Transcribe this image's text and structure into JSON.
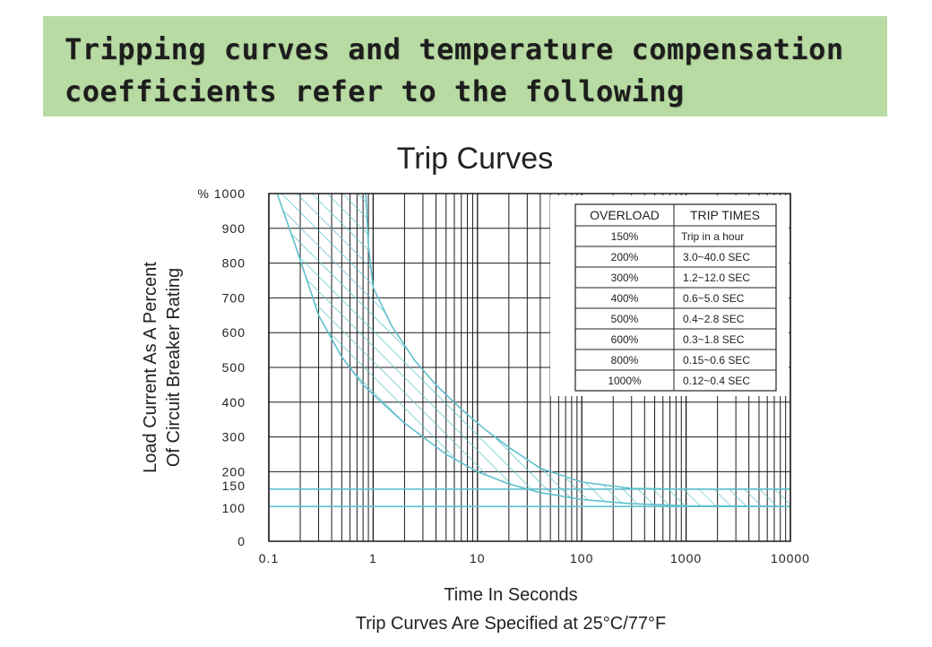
{
  "banner": {
    "line1": "Tripping curves and temperature compensation",
    "line2": "coefficients refer to the following"
  },
  "colors": {
    "banner_bg": "#b8dba3",
    "curve": "#5fc0cc",
    "grid": "#1a1a1a"
  },
  "chart_data": {
    "type": "area",
    "title": "Trip Curves",
    "xlabel": "Time In Seconds",
    "ylabel_line1": "Load Current As A Percent",
    "ylabel_line2": "Of Circuit Breaker Rating",
    "footnote": "Trip Curves Are Specified at 25°C/77°F",
    "x_scale": "log",
    "xlim": [
      0.1,
      10000
    ],
    "ylim": [
      0,
      1000
    ],
    "x_ticks": [
      {
        "value": 0.1,
        "label": "0.1"
      },
      {
        "value": 1,
        "label": "1"
      },
      {
        "value": 10,
        "label": "10"
      },
      {
        "value": 100,
        "label": "100"
      },
      {
        "value": 1000,
        "label": "1000"
      },
      {
        "value": 10000,
        "label": "10000"
      }
    ],
    "y_ticks": [
      {
        "value": 0,
        "label": "0"
      },
      {
        "value": 100,
        "label": "100"
      },
      {
        "value": 150,
        "label": "150"
      },
      {
        "value": 200,
        "label": "200"
      },
      {
        "value": 300,
        "label": "300"
      },
      {
        "value": 400,
        "label": "400"
      },
      {
        "value": 500,
        "label": "500"
      },
      {
        "value": 600,
        "label": "600"
      },
      {
        "value": 700,
        "label": "700"
      },
      {
        "value": 800,
        "label": "800"
      },
      {
        "value": 900,
        "label": "900"
      },
      {
        "value": 1000,
        "label": "% 1000"
      }
    ],
    "grid": true,
    "series": [
      {
        "role": "fast trip boundary",
        "x": [
          0.12,
          0.18,
          0.3,
          0.5,
          0.8,
          1.2,
          2,
          3,
          5,
          10,
          20,
          40,
          100,
          300,
          1000,
          10000
        ],
        "y": [
          1000,
          850,
          650,
          530,
          450,
          400,
          340,
          300,
          250,
          200,
          165,
          140,
          120,
          108,
          102,
          100
        ]
      },
      {
        "role": "slow trip boundary",
        "x": [
          0.85,
          0.9,
          1.0,
          1.5,
          2.5,
          4,
          7,
          12,
          20,
          40,
          100,
          300,
          1000,
          10000
        ],
        "y": [
          1000,
          850,
          730,
          620,
          520,
          450,
          380,
          320,
          270,
          210,
          170,
          152,
          150,
          150
        ]
      }
    ],
    "reference_lines": [
      100,
      150
    ],
    "table": {
      "headers": [
        "OVERLOAD",
        "TRIP TIMES"
      ],
      "rows": [
        [
          "150%",
          "Trip in a hour"
        ],
        [
          "200%",
          "3.0~40.0 SEC"
        ],
        [
          "300%",
          "1.2~12.0 SEC"
        ],
        [
          "400%",
          "0.6~5.0 SEC"
        ],
        [
          "500%",
          "0.4~2.8 SEC"
        ],
        [
          "600%",
          "0.3~1.8 SEC"
        ],
        [
          "800%",
          "0.15~0.6 SEC"
        ],
        [
          "1000%",
          "0.12~0.4 SEC"
        ]
      ]
    }
  }
}
